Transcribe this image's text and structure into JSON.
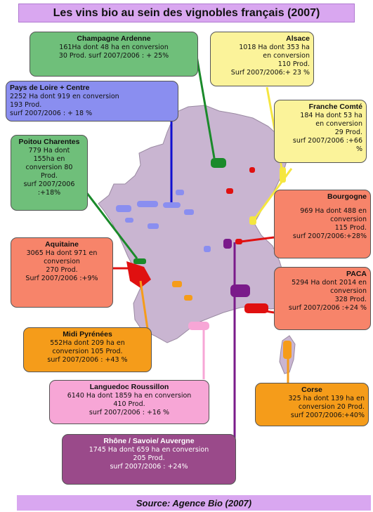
{
  "title": "Les vins bio au sein des vignobles français (2007)",
  "source": "Source: Agence Bio (2007)",
  "colors": {
    "champagne": "#6fbf7a",
    "pays_loire": "#8a8ef0",
    "poitou": "#6fbf7a",
    "aquitaine": "#f7846a",
    "midi": "#f59c1a",
    "languedoc": "#f7a6d6",
    "rhone": "#9a4a8a",
    "alsace": "#fbf39a",
    "franche": "#fbf39a",
    "bourgogne": "#f7846a",
    "paca": "#f7846a",
    "corse": "#f59c1a",
    "map_fill": "#c9b5d1",
    "title_bg": "#d9a7f0"
  },
  "regions": {
    "champagne": {
      "name": "Champagne Ardenne",
      "lines": [
        "161Ha dont 48 ha en conversion",
        "30 Prod.  surf 2007/2006 : + 25%"
      ]
    },
    "pays_loire": {
      "name": "Pays de Loire + Centre",
      "lines": [
        "2252          Ha dont 919 en conversion",
        "193 Prod.",
        "surf 2007/2006 : + 18 %"
      ]
    },
    "poitou": {
      "name": "Poitou Charentes",
      "lines": [
        "779 Ha dont",
        "155ha en",
        "conversion 80",
        "Prod.",
        "surf 2007/2006",
        ":+18%"
      ]
    },
    "aquitaine": {
      "name": "Aquitaine",
      "lines": [
        "3065 Ha dont 971 en",
        "conversion",
        "270 Prod.",
        "Surf 2007/2006 :+9%"
      ]
    },
    "midi": {
      "name": "Midi Pyrénées",
      "lines": [
        "552Ha  dont 209 ha en",
        "conversion    105 Prod.",
        "surf 2007/2006 : +43 %"
      ]
    },
    "languedoc": {
      "name": "Languedoc Roussillon",
      "lines": [
        "6140 Ha dont 1859 ha en conversion",
        "410  Prod.",
        "surf 2007/2006 : +16 %"
      ]
    },
    "rhone": {
      "name": "Rhône / Savoie/ Auvergne",
      "lines": [
        "1745 Ha dont 659 ha en conversion",
        "205 Prod.",
        "surf 2007/2006 : +24%"
      ]
    },
    "alsace": {
      "name": "Alsace",
      "lines": [
        "1018  Ha  dont 353 ha",
        "en conversion",
        "110 Prod.",
        "Surf 2007/2006:+ 23 %"
      ]
    },
    "franche": {
      "name": "Franche Comté",
      "lines": [
        "184 Ha  dont 53 ha",
        "en conversion",
        "29 Prod.",
        "surf 2007/2006 :+66",
        "%"
      ]
    },
    "bourgogne": {
      "name": "Bourgogne",
      "lines": [
        "969 Ha dont 488 en",
        "conversion",
        "115  Prod.",
        "surf 2007/2006:+28%"
      ]
    },
    "paca": {
      "name": "PACA",
      "lines": [
        "5294 Ha dont 2014 en",
        "conversion",
        "328 Prod.",
        "surf 2007/2006 :+24 %"
      ]
    },
    "corse": {
      "name": "Corse",
      "lines": [
        "325 ha dont 139 ha en",
        "conversion 20 Prod.",
        "surf 2007/2006:+40%"
      ]
    }
  }
}
